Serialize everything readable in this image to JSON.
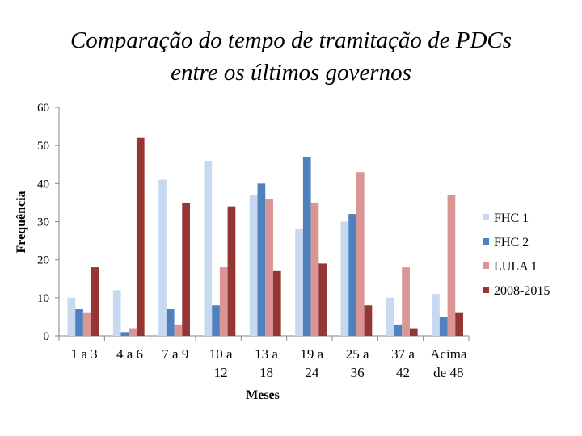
{
  "chart_data": {
    "type": "bar",
    "title_lines": [
      "Comparação do tempo de tramitação de PDCs",
      "entre os últimos governos"
    ],
    "xlabel": "Meses",
    "ylabel": "Frequência",
    "ylim": [
      0,
      60
    ],
    "yticks": [
      0,
      10,
      20,
      30,
      40,
      50,
      60
    ],
    "grid": false,
    "legend_position": "right",
    "categories": [
      [
        "1 a 3"
      ],
      [
        "4 a 6"
      ],
      [
        "7 a 9"
      ],
      [
        "10 a",
        "12"
      ],
      [
        "13 a",
        "18"
      ],
      [
        "19 a",
        "24"
      ],
      [
        "25 a",
        "36"
      ],
      [
        "37 a",
        "42"
      ],
      [
        "Acima",
        "de 48"
      ]
    ],
    "series": [
      {
        "name": "FHC 1",
        "color": "#c6d9f1",
        "values": [
          10,
          12,
          41,
          46,
          37,
          28,
          30,
          10,
          11
        ]
      },
      {
        "name": "FHC 2",
        "color": "#4f81bd",
        "values": [
          7,
          1,
          7,
          8,
          40,
          47,
          32,
          3,
          5
        ]
      },
      {
        "name": "LULA 1",
        "color": "#d99694",
        "values": [
          6,
          2,
          3,
          18,
          36,
          35,
          43,
          18,
          37
        ]
      },
      {
        "name": "2008-2015",
        "color": "#943634",
        "values": [
          18,
          52,
          35,
          34,
          17,
          19,
          8,
          2,
          6
        ]
      }
    ]
  }
}
